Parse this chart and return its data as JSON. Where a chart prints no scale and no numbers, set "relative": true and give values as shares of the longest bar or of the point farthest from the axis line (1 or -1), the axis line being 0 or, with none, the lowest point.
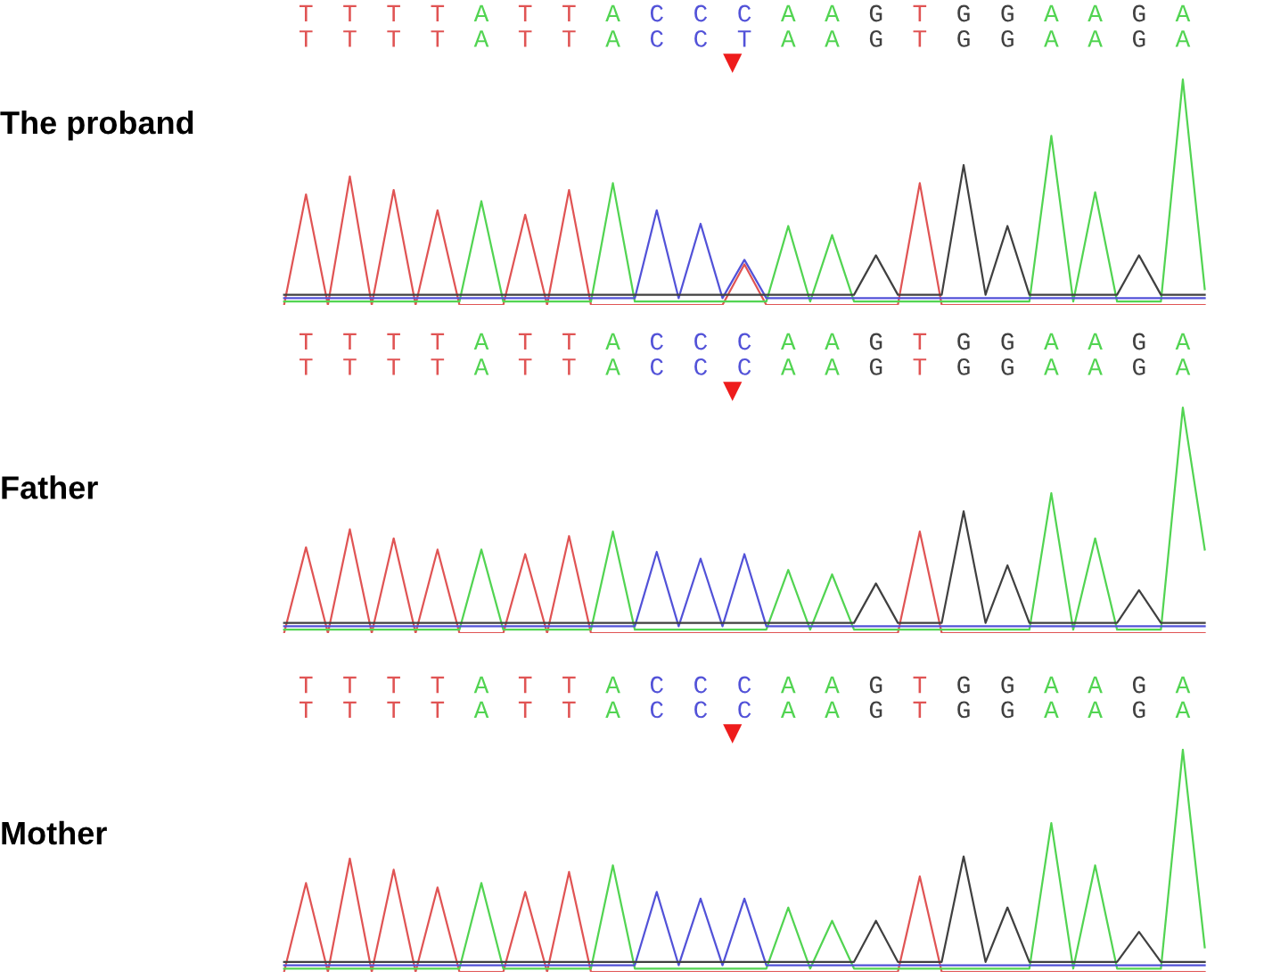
{
  "chart_data": [
    {
      "type": "line",
      "relative": true,
      "ylabel": "The proband",
      "tick_labels": false,
      "categories": [
        null,
        null,
        null,
        null,
        null,
        null,
        null,
        null,
        null,
        null,
        null,
        null,
        null,
        null,
        null,
        null,
        null,
        null,
        null,
        null,
        null,
        null,
        null,
        null,
        null,
        null,
        null,
        null,
        null,
        null,
        null,
        null,
        null,
        null,
        null,
        null,
        null,
        null,
        null,
        null,
        null,
        null,
        null
      ],
      "annotations": [
        "T T T T A T T A C C C A A G T G G A A G A",
        "T T T T A T T A C C T A A G T G G A A G A",
        "▼"
      ],
      "series": [
        {
          "color": "#e05454",
          "values": [
            0,
            0.49,
            0,
            0.57,
            0,
            0.51,
            0,
            0.42,
            0,
            0,
            0,
            0.4,
            0,
            0.51,
            0,
            0,
            0,
            0,
            0,
            0,
            0,
            0.18,
            0,
            0,
            0,
            0,
            0,
            0,
            0,
            0.54,
            0,
            0,
            0,
            0,
            0,
            0,
            0,
            0,
            0,
            0,
            0,
            0,
            0
          ]
        },
        {
          "color": "#52d452",
          "values": [
            0.015,
            0.015,
            0.015,
            0.015,
            0.015,
            0.015,
            0.015,
            0.015,
            0.015,
            0.46,
            0.015,
            0.015,
            0.015,
            0.015,
            0.015,
            0.54,
            0.015,
            0.015,
            0.015,
            0.015,
            0.015,
            0.015,
            0.015,
            0.35,
            0.015,
            0.31,
            0.015,
            0.015,
            0.015,
            0.015,
            0.015,
            0.015,
            0.015,
            0.015,
            0.015,
            0.75,
            0.015,
            0.5,
            0.015,
            0.015,
            0.015,
            1.0,
            0.07
          ]
        },
        {
          "color": "#5252d8",
          "values": [
            0.03,
            0.03,
            0.03,
            0.03,
            0.03,
            0.03,
            0.03,
            0.03,
            0.03,
            0.03,
            0.03,
            0.03,
            0.03,
            0.03,
            0.03,
            0.03,
            0.03,
            0.42,
            0.03,
            0.36,
            0.03,
            0.2,
            0.03,
            0.03,
            0.03,
            0.03,
            0.03,
            0.03,
            0.03,
            0.03,
            0.03,
            0.03,
            0.03,
            0.03,
            0.03,
            0.03,
            0.03,
            0.03,
            0.03,
            0.03,
            0.03,
            0.03,
            0.03
          ]
        },
        {
          "color": "#404040",
          "values": [
            0.045,
            0.045,
            0.045,
            0.045,
            0.045,
            0.045,
            0.045,
            0.045,
            0.045,
            0.045,
            0.045,
            0.045,
            0.045,
            0.045,
            0.045,
            0.045,
            0.045,
            0.045,
            0.045,
            0.045,
            0.045,
            0.045,
            0.045,
            0.045,
            0.045,
            0.045,
            0.045,
            0.22,
            0.045,
            0.045,
            0.045,
            0.62,
            0.045,
            0.35,
            0.045,
            0.045,
            0.045,
            0.045,
            0.045,
            0.22,
            0.045,
            0.045,
            0.045
          ]
        }
      ]
    },
    {
      "type": "line",
      "relative": true,
      "ylabel": "Father",
      "tick_labels": false,
      "categories": [
        null,
        null,
        null,
        null,
        null,
        null,
        null,
        null,
        null,
        null,
        null,
        null,
        null,
        null,
        null,
        null,
        null,
        null,
        null,
        null,
        null,
        null,
        null,
        null,
        null,
        null,
        null,
        null,
        null,
        null,
        null,
        null,
        null,
        null,
        null,
        null,
        null,
        null,
        null,
        null,
        null,
        null,
        null
      ],
      "annotations": [
        "T T T T A T T A C C C A A G T G G A A G A",
        "T T T T A T T A C C C A A G T G G A A G A",
        "▼"
      ],
      "series": [
        {
          "color": "#e05454",
          "values": [
            0,
            0.38,
            0,
            0.46,
            0,
            0.42,
            0,
            0.37,
            0,
            0,
            0,
            0.35,
            0,
            0.43,
            0,
            0,
            0,
            0,
            0,
            0,
            0,
            0,
            0,
            0,
            0,
            0,
            0,
            0,
            0,
            0.45,
            0,
            0,
            0,
            0,
            0,
            0,
            0,
            0,
            0,
            0,
            0,
            0,
            0
          ]
        },
        {
          "color": "#52d452",
          "values": [
            0.015,
            0.015,
            0.015,
            0.015,
            0.015,
            0.015,
            0.015,
            0.015,
            0.015,
            0.37,
            0.015,
            0.015,
            0.015,
            0.015,
            0.015,
            0.45,
            0.015,
            0.015,
            0.015,
            0.015,
            0.015,
            0.015,
            0.015,
            0.28,
            0.015,
            0.26,
            0.015,
            0.015,
            0.015,
            0.015,
            0.015,
            0.015,
            0.015,
            0.015,
            0.015,
            0.62,
            0.015,
            0.42,
            0.015,
            0.015,
            0.015,
            1.0,
            0.37
          ]
        },
        {
          "color": "#5252d8",
          "values": [
            0.03,
            0.03,
            0.03,
            0.03,
            0.03,
            0.03,
            0.03,
            0.03,
            0.03,
            0.03,
            0.03,
            0.03,
            0.03,
            0.03,
            0.03,
            0.03,
            0.03,
            0.36,
            0.03,
            0.33,
            0.03,
            0.35,
            0.03,
            0.03,
            0.03,
            0.03,
            0.03,
            0.03,
            0.03,
            0.03,
            0.03,
            0.03,
            0.03,
            0.03,
            0.03,
            0.03,
            0.03,
            0.03,
            0.03,
            0.03,
            0.03,
            0.03,
            0.03
          ]
        },
        {
          "color": "#404040",
          "values": [
            0.045,
            0.045,
            0.045,
            0.045,
            0.045,
            0.045,
            0.045,
            0.045,
            0.045,
            0.045,
            0.045,
            0.045,
            0.045,
            0.045,
            0.045,
            0.045,
            0.045,
            0.045,
            0.045,
            0.045,
            0.045,
            0.045,
            0.045,
            0.045,
            0.045,
            0.045,
            0.045,
            0.22,
            0.045,
            0.045,
            0.045,
            0.54,
            0.045,
            0.3,
            0.045,
            0.045,
            0.045,
            0.045,
            0.045,
            0.19,
            0.045,
            0.045,
            0.045
          ]
        }
      ]
    },
    {
      "type": "line",
      "relative": true,
      "ylabel": "Mother",
      "tick_labels": false,
      "categories": [
        null,
        null,
        null,
        null,
        null,
        null,
        null,
        null,
        null,
        null,
        null,
        null,
        null,
        null,
        null,
        null,
        null,
        null,
        null,
        null,
        null,
        null,
        null,
        null,
        null,
        null,
        null,
        null,
        null,
        null,
        null,
        null,
        null,
        null,
        null,
        null,
        null,
        null,
        null,
        null,
        null,
        null,
        null
      ],
      "annotations": [
        "T T T T A T T A C C C A A G T G G A A G A",
        "T T T T A T T A C C C A A G T G G A A G A",
        "▼"
      ],
      "series": [
        {
          "color": "#e05454",
          "values": [
            0,
            0.4,
            0,
            0.51,
            0,
            0.46,
            0,
            0.38,
            0,
            0,
            0,
            0.36,
            0,
            0.45,
            0,
            0,
            0,
            0,
            0,
            0,
            0,
            0,
            0,
            0,
            0,
            0,
            0,
            0,
            0,
            0.43,
            0,
            0,
            0,
            0,
            0,
            0,
            0,
            0,
            0,
            0,
            0,
            0,
            0
          ]
        },
        {
          "color": "#52d452",
          "values": [
            0.015,
            0.015,
            0.015,
            0.015,
            0.015,
            0.015,
            0.015,
            0.015,
            0.015,
            0.4,
            0.015,
            0.015,
            0.015,
            0.015,
            0.015,
            0.48,
            0.015,
            0.015,
            0.015,
            0.015,
            0.015,
            0.015,
            0.015,
            0.29,
            0.015,
            0.23,
            0.015,
            0.015,
            0.015,
            0.015,
            0.015,
            0.015,
            0.015,
            0.015,
            0.015,
            0.67,
            0.015,
            0.48,
            0.015,
            0.015,
            0.015,
            1.0,
            0.11
          ]
        },
        {
          "color": "#5252d8",
          "values": [
            0.03,
            0.03,
            0.03,
            0.03,
            0.03,
            0.03,
            0.03,
            0.03,
            0.03,
            0.03,
            0.03,
            0.03,
            0.03,
            0.03,
            0.03,
            0.03,
            0.03,
            0.36,
            0.03,
            0.33,
            0.03,
            0.33,
            0.03,
            0.03,
            0.03,
            0.03,
            0.03,
            0.03,
            0.03,
            0.03,
            0.03,
            0.03,
            0.03,
            0.03,
            0.03,
            0.03,
            0.03,
            0.03,
            0.03,
            0.03,
            0.03,
            0.03,
            0.03
          ]
        },
        {
          "color": "#404040",
          "values": [
            0.045,
            0.045,
            0.045,
            0.045,
            0.045,
            0.045,
            0.045,
            0.045,
            0.045,
            0.045,
            0.045,
            0.045,
            0.045,
            0.045,
            0.045,
            0.045,
            0.045,
            0.045,
            0.045,
            0.045,
            0.045,
            0.045,
            0.045,
            0.045,
            0.045,
            0.045,
            0.045,
            0.23,
            0.045,
            0.045,
            0.045,
            0.52,
            0.045,
            0.29,
            0.045,
            0.045,
            0.045,
            0.045,
            0.045,
            0.18,
            0.045,
            0.045,
            0.045
          ]
        }
      ]
    }
  ]
}
